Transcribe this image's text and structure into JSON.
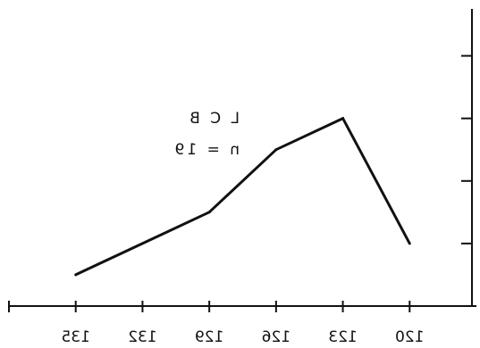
{
  "chart_data": {
    "type": "line",
    "orientation": "mirrored-horizontal",
    "x": [
      123,
      126,
      129,
      132,
      135,
      120
    ],
    "x_ticks": [
      135,
      132,
      129,
      126,
      123,
      120
    ],
    "xlim": [
      138,
      117
    ],
    "series": [
      {
        "x": [
          135,
          129,
          126,
          123,
          120
        ],
        "y": [
          0.5,
          1.5,
          2.5,
          3.0,
          1.0
        ]
      }
    ],
    "ylim": [
      0,
      4.75
    ],
    "y_ticks": [
      1,
      2,
      3,
      4
    ],
    "annotations": [
      "L C B",
      "n = 19"
    ],
    "title": "",
    "xlabel": "",
    "ylabel": "",
    "grid": false,
    "colors": {
      "line": "#111111",
      "axis": "#111111"
    }
  }
}
